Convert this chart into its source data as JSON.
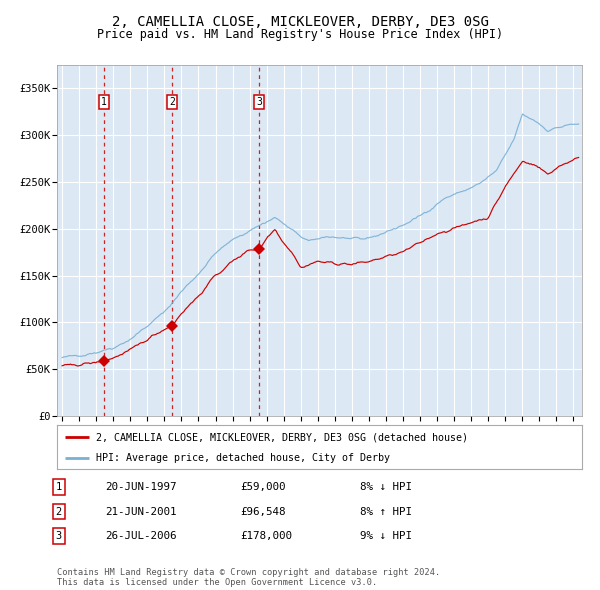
{
  "title": "2, CAMELLIA CLOSE, MICKLEOVER, DERBY, DE3 0SG",
  "subtitle": "Price paid vs. HM Land Registry's House Price Index (HPI)",
  "title_fontsize": 10,
  "subtitle_fontsize": 8.5,
  "bg_color": "#dce9f5",
  "grid_color": "#ffffff",
  "red_line_color": "#cc0000",
  "blue_line_color": "#7ab0d4",
  "dashed_line_color": "#cc0000",
  "sale_year_floats": [
    1997.47,
    2001.47,
    2006.57
  ],
  "sale_prices": [
    59000,
    96548,
    178000
  ],
  "sale_labels": [
    "1",
    "2",
    "3"
  ],
  "legend_red": "2, CAMELLIA CLOSE, MICKLEOVER, DERBY, DE3 0SG (detached house)",
  "legend_blue": "HPI: Average price, detached house, City of Derby",
  "table_rows": [
    [
      "1",
      "20-JUN-1997",
      "£59,000",
      "8% ↓ HPI"
    ],
    [
      "2",
      "21-JUN-2001",
      "£96,548",
      "8% ↑ HPI"
    ],
    [
      "3",
      "26-JUL-2006",
      "£178,000",
      "9% ↓ HPI"
    ]
  ],
  "footer": "Contains HM Land Registry data © Crown copyright and database right 2024.\nThis data is licensed under the Open Government Licence v3.0.",
  "ylim": [
    0,
    375000
  ],
  "yticks": [
    0,
    50000,
    100000,
    150000,
    200000,
    250000,
    300000,
    350000
  ],
  "ytick_labels": [
    "£0",
    "£50K",
    "£100K",
    "£150K",
    "£200K",
    "£250K",
    "£300K",
    "£350K"
  ],
  "xlim_start": 1994.7,
  "xlim_end": 2025.5,
  "hpi_anchors_t": [
    1995.0,
    1996.0,
    1997.0,
    1998.0,
    1999.0,
    2000.0,
    2001.0,
    2002.0,
    2003.0,
    2004.0,
    2005.0,
    2006.5,
    2007.5,
    2008.5,
    2009.5,
    2010.5,
    2011.5,
    2012.5,
    2013.5,
    2014.5,
    2015.5,
    2016.5,
    2017.5,
    2018.5,
    2019.5,
    2020.5,
    2021.5,
    2022.0,
    2022.8,
    2023.5,
    2024.5,
    2025.3
  ],
  "hpi_anchors_v": [
    62000,
    65000,
    68000,
    73000,
    82000,
    96000,
    111000,
    133000,
    152000,
    174000,
    188000,
    203000,
    212000,
    198000,
    186000,
    192000,
    190000,
    188000,
    193000,
    200000,
    208000,
    220000,
    233000,
    240000,
    248000,
    262000,
    295000,
    322000,
    315000,
    305000,
    310000,
    312000
  ],
  "red_anchors_t": [
    1995.0,
    1996.0,
    1997.0,
    1997.47,
    1998.0,
    1999.0,
    2000.0,
    2001.0,
    2001.47,
    2002.0,
    2003.0,
    2004.0,
    2005.0,
    2006.0,
    2006.57,
    2007.0,
    2007.5,
    2008.0,
    2008.5,
    2009.0,
    2009.5,
    2010.0,
    2011.0,
    2012.0,
    2013.0,
    2014.0,
    2015.0,
    2016.0,
    2017.0,
    2018.0,
    2019.0,
    2020.0,
    2021.0,
    2022.0,
    2022.5,
    2023.0,
    2023.5,
    2024.0,
    2024.5,
    2025.3
  ],
  "red_anchors_v": [
    53000,
    55000,
    57000,
    59000,
    62000,
    70000,
    82000,
    93000,
    96548,
    110000,
    128000,
    150000,
    165000,
    178000,
    178000,
    190000,
    200000,
    185000,
    175000,
    158000,
    162000,
    165000,
    163000,
    162000,
    165000,
    170000,
    175000,
    185000,
    195000,
    200000,
    207000,
    212000,
    245000,
    272000,
    270000,
    265000,
    258000,
    265000,
    270000,
    275000
  ]
}
